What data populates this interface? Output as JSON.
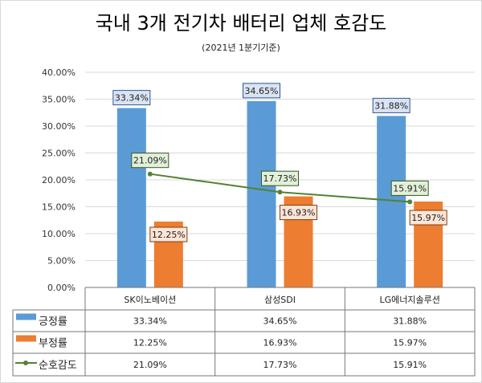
{
  "title": "국내 3개 전기차 배터리 업체 호감도",
  "subtitle": "(2021년 1분기기준)",
  "chart_data": {
    "type": "bar",
    "title": "국내 3개 전기차 배터리 업체 호감도",
    "subtitle": "(2021년 1분기기준)",
    "categories": [
      "SK이노베이션",
      "삼성SDI",
      "LG에너지솔루션"
    ],
    "series": [
      {
        "name": "긍정률",
        "type": "bar",
        "color": "#5b9bd5",
        "values": [
          33.34,
          34.65,
          31.88
        ],
        "labels": [
          "33.34%",
          "34.65%",
          "31.88%"
        ]
      },
      {
        "name": "부정률",
        "type": "bar",
        "color": "#ed7d31",
        "values": [
          12.25,
          16.93,
          15.97
        ],
        "labels": [
          "12.25%",
          "16.93%",
          "15.97%"
        ]
      },
      {
        "name": "순호감도",
        "type": "line",
        "color": "#548235",
        "values": [
          21.09,
          17.73,
          15.91
        ],
        "labels": [
          "21.09%",
          "17.73%",
          "15.91%"
        ]
      }
    ],
    "yticks": [
      "0.00%",
      "5.00%",
      "10.00%",
      "15.00%",
      "20.00%",
      "25.00%",
      "30.00%",
      "35.00%",
      "40.00%"
    ],
    "ylim": [
      0,
      40
    ],
    "grid": true,
    "legend": "data-table"
  }
}
